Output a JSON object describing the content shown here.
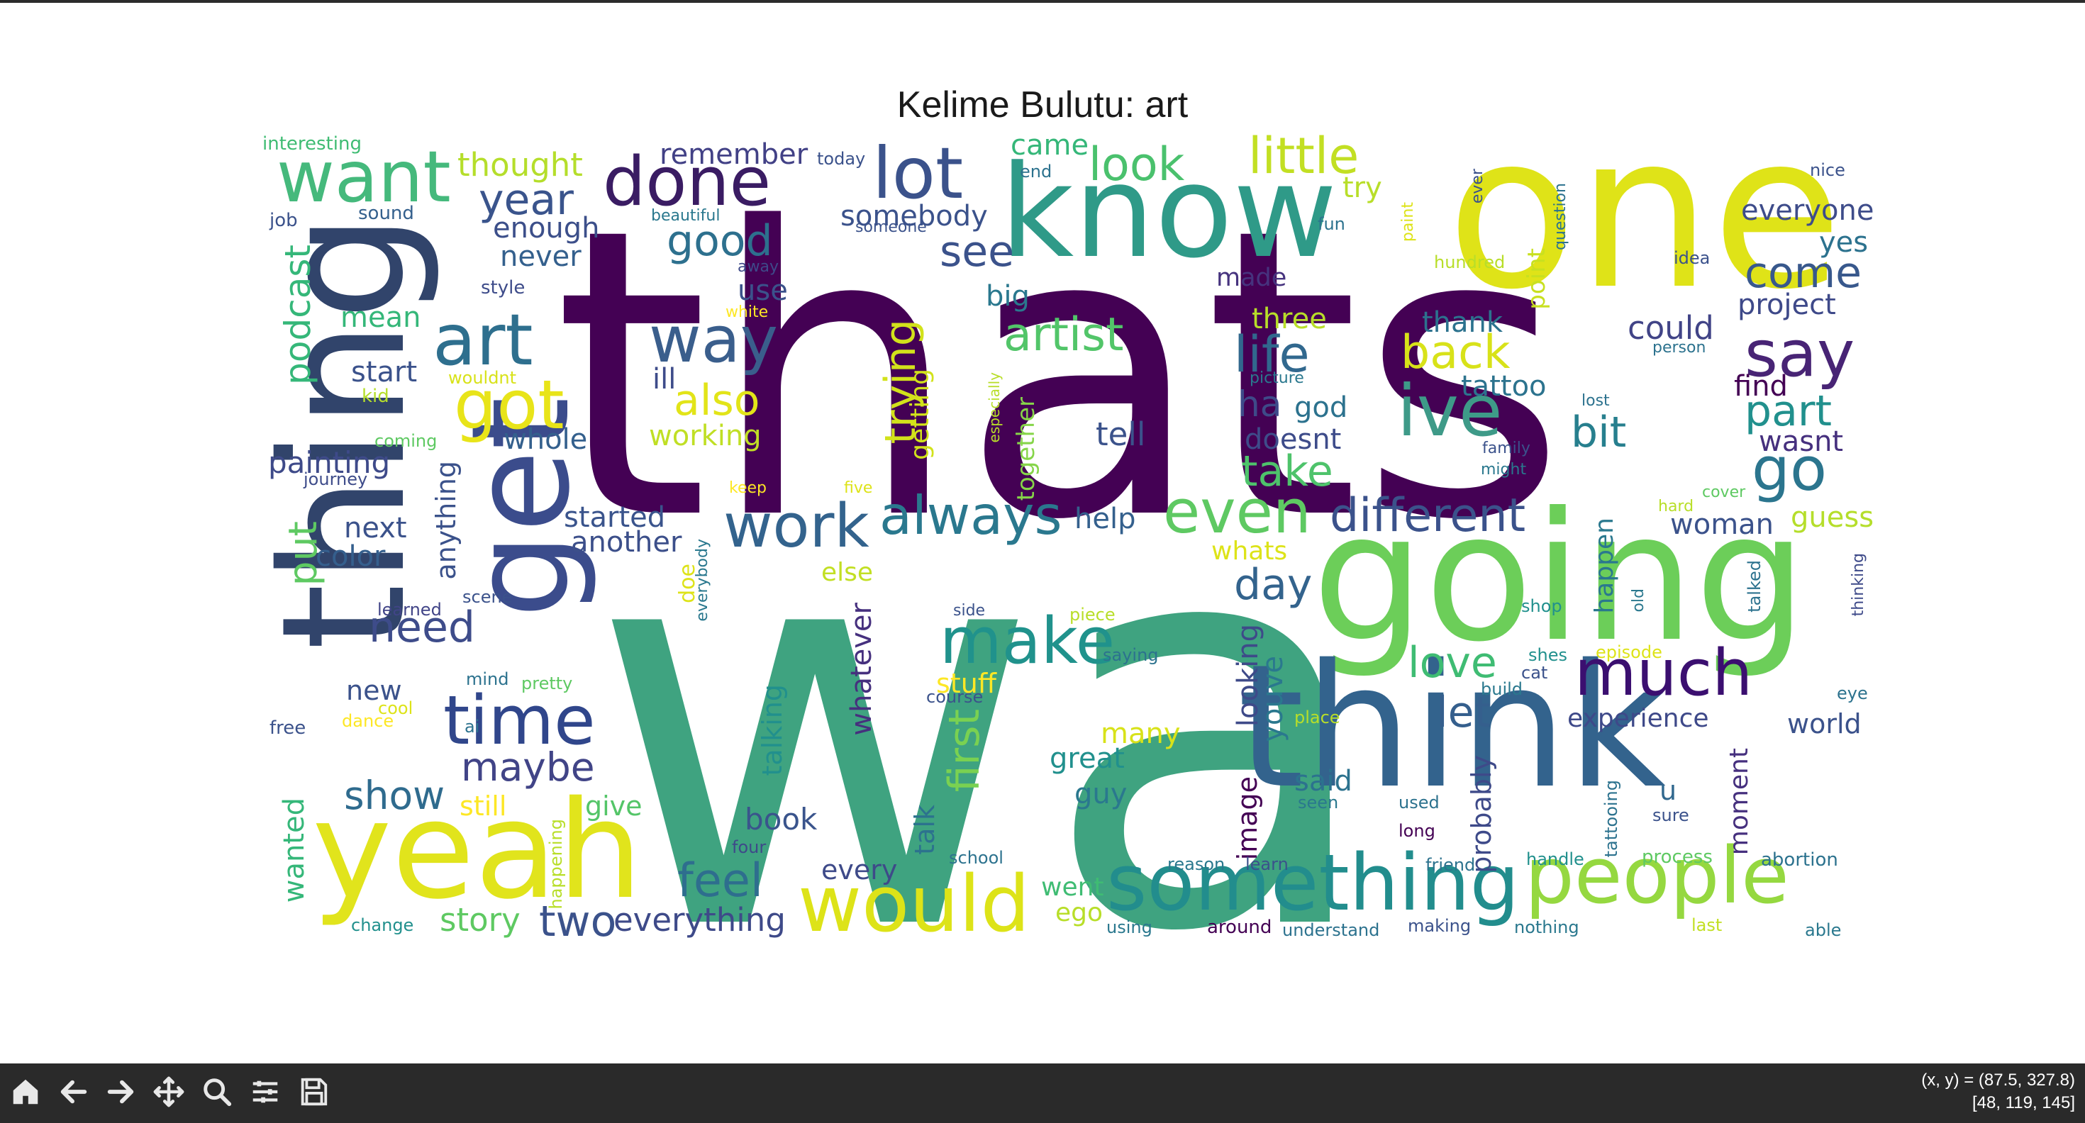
{
  "title": "Kelime Bulutu: art",
  "words": [
    {
      "text": "thats",
      "color": "#440154"
    },
    {
      "text": "wa",
      "color": "#3fa380"
    },
    {
      "text": "one",
      "color": "#dfe318"
    },
    {
      "text": "know",
      "color": "#2f9a88"
    },
    {
      "text": "going",
      "color": "#6cce59"
    },
    {
      "text": "think",
      "color": "#33638d"
    },
    {
      "text": "thing",
      "color": "#31446b"
    },
    {
      "text": "yeah",
      "color": "#e1e41c"
    },
    {
      "text": "get",
      "color": "#3b4c8c"
    },
    {
      "text": "something",
      "color": "#228d8d"
    },
    {
      "text": "people",
      "color": "#95d840"
    },
    {
      "text": "would",
      "color": "#dde318"
    },
    {
      "text": "want",
      "color": "#45b97c"
    },
    {
      "text": "done",
      "color": "#3a1c63"
    },
    {
      "text": "lot",
      "color": "#3b528b"
    },
    {
      "text": "art",
      "color": "#2e6f8e"
    },
    {
      "text": "got",
      "color": "#e8e419"
    },
    {
      "text": "time",
      "color": "#30468b"
    },
    {
      "text": "way",
      "color": "#3a5e8c"
    },
    {
      "text": "say",
      "color": "#482475"
    },
    {
      "text": "ive",
      "color": "#3e9a88"
    },
    {
      "text": "go",
      "color": "#2b758e"
    },
    {
      "text": "much",
      "color": "#3b0f70"
    },
    {
      "text": "work",
      "color": "#33638d"
    },
    {
      "text": "even",
      "color": "#5ec962"
    },
    {
      "text": "make",
      "color": "#20928c"
    },
    {
      "text": "always",
      "color": "#2a788e"
    },
    {
      "text": "different",
      "color": "#3b528b"
    },
    {
      "text": "look",
      "color": "#4ac16d"
    },
    {
      "text": "little",
      "color": "#c2df23"
    },
    {
      "text": "back",
      "color": "#d8e219"
    },
    {
      "text": "life",
      "color": "#31688e"
    },
    {
      "text": "artist",
      "color": "#52c569"
    },
    {
      "text": "good",
      "color": "#2d708e"
    },
    {
      "text": "year",
      "color": "#3a548c"
    },
    {
      "text": "come",
      "color": "#38588c"
    },
    {
      "text": "part",
      "color": "#21908d"
    },
    {
      "text": "bit",
      "color": "#277f8e"
    },
    {
      "text": "take",
      "color": "#4ec36b"
    },
    {
      "text": "feel",
      "color": "#2e6e8e"
    },
    {
      "text": "love",
      "color": "#3fbc73"
    },
    {
      "text": "let",
      "color": "#355f8d"
    },
    {
      "text": "need",
      "color": "#3e4c8a"
    },
    {
      "text": "show",
      "color": "#2f6b8e"
    },
    {
      "text": "two",
      "color": "#3b528b"
    },
    {
      "text": "maybe",
      "color": "#414487"
    },
    {
      "text": "also",
      "color": "#e2e418"
    },
    {
      "text": "see",
      "color": "#3b528b"
    },
    {
      "text": "trying",
      "color": "#d2e21b"
    },
    {
      "text": "first",
      "color": "#7ad151"
    },
    {
      "text": "day",
      "color": "#33638d"
    },
    {
      "text": "put",
      "color": "#5ec962"
    },
    {
      "text": "podcast",
      "color": "#35b779"
    },
    {
      "text": "story",
      "color": "#5ec962"
    },
    {
      "text": "everything",
      "color": "#3e4a89"
    },
    {
      "text": "thought",
      "color": "#b5de2b"
    },
    {
      "text": "remember",
      "color": "#424186"
    },
    {
      "text": "enough",
      "color": "#3c4f8a"
    },
    {
      "text": "never",
      "color": "#34608d"
    },
    {
      "text": "use",
      "color": "#3b528b"
    },
    {
      "text": "big",
      "color": "#2a788e"
    },
    {
      "text": "made",
      "color": "#46337e"
    },
    {
      "text": "three",
      "color": "#b8de29"
    },
    {
      "text": "thank",
      "color": "#2c728e"
    },
    {
      "text": "could",
      "color": "#414487"
    },
    {
      "text": "project",
      "color": "#3e4989"
    },
    {
      "text": "find",
      "color": "#440154"
    },
    {
      "text": "wasnt",
      "color": "#46307e"
    },
    {
      "text": "tattoo",
      "color": "#2c738e"
    },
    {
      "text": "tell",
      "color": "#3b528b"
    },
    {
      "text": "doesnt",
      "color": "#3e4c8a"
    },
    {
      "text": "ha",
      "color": "#3e4a89"
    },
    {
      "text": "god",
      "color": "#2c728e"
    },
    {
      "text": "start",
      "color": "#3b528b"
    },
    {
      "text": "mean",
      "color": "#35b779"
    },
    {
      "text": "whole",
      "color": "#34608d"
    },
    {
      "text": "painting",
      "color": "#3e4a89"
    },
    {
      "text": "next",
      "color": "#3b528b"
    },
    {
      "text": "color",
      "color": "#355f8d"
    },
    {
      "text": "started",
      "color": "#3a548c"
    },
    {
      "text": "another",
      "color": "#3c4f8a"
    },
    {
      "text": "help",
      "color": "#34608d"
    },
    {
      "text": "working",
      "color": "#c0df25"
    },
    {
      "text": "ill",
      "color": "#3e4c8a"
    },
    {
      "text": "somebody",
      "color": "#3b528b"
    },
    {
      "text": "came",
      "color": "#35b779"
    },
    {
      "text": "everyone",
      "color": "#3e4c8a"
    },
    {
      "text": "yes",
      "color": "#2c728e"
    },
    {
      "text": "woman",
      "color": "#3b528b"
    },
    {
      "text": "guess",
      "color": "#b5de2b"
    },
    {
      "text": "new",
      "color": "#3b528b"
    },
    {
      "text": "still",
      "color": "#fde725"
    },
    {
      "text": "give",
      "color": "#54c568"
    },
    {
      "text": "book",
      "color": "#3a548c"
    },
    {
      "text": "every",
      "color": "#3e4a89"
    },
    {
      "text": "went",
      "color": "#3fbc73"
    },
    {
      "text": "ego",
      "color": "#b8de29"
    },
    {
      "text": "many",
      "color": "#d8e219"
    },
    {
      "text": "great",
      "color": "#21908d"
    },
    {
      "text": "guy",
      "color": "#2a788e"
    },
    {
      "text": "said",
      "color": "#2c728e"
    },
    {
      "text": "experience",
      "color": "#3e4989"
    },
    {
      "text": "world",
      "color": "#3b528b"
    },
    {
      "text": "u",
      "color": "#31688e"
    },
    {
      "text": "whatever",
      "color": "#46307e"
    },
    {
      "text": "looking",
      "color": "#3e4a89"
    },
    {
      "text": "youve",
      "color": "#2a788e"
    },
    {
      "text": "image",
      "color": "#440154"
    },
    {
      "text": "probably",
      "color": "#3e4a89"
    },
    {
      "text": "talking",
      "color": "#21908d"
    },
    {
      "text": "talk",
      "color": "#2c728e"
    },
    {
      "text": "stuff",
      "color": "#fde725"
    },
    {
      "text": "whats",
      "color": "#dde318"
    },
    {
      "text": "else",
      "color": "#c2df23"
    },
    {
      "text": "anything",
      "color": "#3b528b"
    },
    {
      "text": "getting",
      "color": "#d2e21b"
    },
    {
      "text": "together",
      "color": "#86d549"
    },
    {
      "text": "happen",
      "color": "#2a788e"
    },
    {
      "text": "moment",
      "color": "#46307e"
    },
    {
      "text": "wanted",
      "color": "#35b779"
    },
    {
      "text": "point",
      "color": "#c8e020"
    },
    {
      "text": "interesting",
      "color": "#3fbc73"
    },
    {
      "text": "job",
      "color": "#3b528b"
    },
    {
      "text": "sound",
      "color": "#34608d"
    },
    {
      "text": "style",
      "color": "#3e4c8a"
    },
    {
      "text": "kid",
      "color": "#b5de2b"
    },
    {
      "text": "wouldnt",
      "color": "#d8e219"
    },
    {
      "text": "coming",
      "color": "#5ec962"
    },
    {
      "text": "journey",
      "color": "#3e4c8a"
    },
    {
      "text": "scene",
      "color": "#3b528b"
    },
    {
      "text": "learned",
      "color": "#414487"
    },
    {
      "text": "mind",
      "color": "#2c728e"
    },
    {
      "text": "pretty",
      "color": "#5ec962"
    },
    {
      "text": "cool",
      "color": "#dde318"
    },
    {
      "text": "dance",
      "color": "#fde725"
    },
    {
      "text": "free",
      "color": "#3b528b"
    },
    {
      "text": "ai",
      "color": "#2c728e"
    },
    {
      "text": "change",
      "color": "#21908d"
    },
    {
      "text": "happening",
      "color": "#b8de29"
    },
    {
      "text": "four",
      "color": "#3e4a89"
    },
    {
      "text": "school",
      "color": "#2c728e"
    },
    {
      "text": "using",
      "color": "#2a788e"
    },
    {
      "text": "around",
      "color": "#440154"
    },
    {
      "text": "understand",
      "color": "#2c728e"
    },
    {
      "text": "making",
      "color": "#3b528b"
    },
    {
      "text": "nothing",
      "color": "#2a788e"
    },
    {
      "text": "last",
      "color": "#c2df23"
    },
    {
      "text": "able",
      "color": "#2a788e"
    },
    {
      "text": "abortion",
      "color": "#2c728e"
    },
    {
      "text": "process",
      "color": "#5ec962"
    },
    {
      "text": "handle",
      "color": "#21908d"
    },
    {
      "text": "friend",
      "color": "#2c728e"
    },
    {
      "text": "reason",
      "color": "#2a788e"
    },
    {
      "text": "learn",
      "color": "#3b528b"
    },
    {
      "text": "long",
      "color": "#440154"
    },
    {
      "text": "used",
      "color": "#2c728e"
    },
    {
      "text": "seen",
      "color": "#2a788e"
    },
    {
      "text": "sure",
      "color": "#3b528b"
    },
    {
      "text": "tattooing",
      "color": "#2c728e"
    },
    {
      "text": "place",
      "color": "#b8de29"
    },
    {
      "text": "build",
      "color": "#2a788e"
    },
    {
      "text": "shes",
      "color": "#21908d"
    },
    {
      "text": "cat",
      "color": "#3b528b"
    },
    {
      "text": "episode",
      "color": "#dde318"
    },
    {
      "text": "eye",
      "color": "#2c728e"
    },
    {
      "text": "shop",
      "color": "#21908d"
    },
    {
      "text": "old",
      "color": "#2a788e"
    },
    {
      "text": "talked",
      "color": "#2c728e"
    },
    {
      "text": "thinking",
      "color": "#3e4a89"
    },
    {
      "text": "course",
      "color": "#3b528b"
    },
    {
      "text": "saying",
      "color": "#2c728e"
    },
    {
      "text": "piece",
      "color": "#b8de29"
    },
    {
      "text": "side",
      "color": "#3b528b"
    },
    {
      "text": "everybody",
      "color": "#2a788e"
    },
    {
      "text": "doe",
      "color": "#dde318"
    },
    {
      "text": "keep",
      "color": "#fde725"
    },
    {
      "text": "five",
      "color": "#dde318"
    },
    {
      "text": "especially",
      "color": "#b8de29"
    },
    {
      "text": "cover",
      "color": "#5ec962"
    },
    {
      "text": "hard",
      "color": "#b8de29"
    },
    {
      "text": "might",
      "color": "#2a788e"
    },
    {
      "text": "family",
      "color": "#3b528b"
    },
    {
      "text": "lost",
      "color": "#2c728e"
    },
    {
      "text": "picture",
      "color": "#2a788e"
    },
    {
      "text": "person",
      "color": "#2c728e"
    },
    {
      "text": "idea",
      "color": "#3b528b"
    },
    {
      "text": "hundred",
      "color": "#b8de29"
    },
    {
      "text": "question",
      "color": "#2c728e"
    },
    {
      "text": "paint",
      "color": "#dde318"
    },
    {
      "text": "ever",
      "color": "#3b528b"
    },
    {
      "text": "fun",
      "color": "#2c728e"
    },
    {
      "text": "try",
      "color": "#b8de29"
    },
    {
      "text": "nice",
      "color": "#3b528b"
    },
    {
      "text": "today",
      "color": "#3b528b"
    },
    {
      "text": "end",
      "color": "#2c728e"
    },
    {
      "text": "beautiful",
      "color": "#2a788e"
    },
    {
      "text": "someone",
      "color": "#3b528b"
    },
    {
      "text": "away",
      "color": "#3e4a89"
    },
    {
      "text": "white",
      "color": "#fde725"
    }
  ],
  "toolbar": {
    "icons": [
      "home-icon",
      "back-arrow-icon",
      "forward-arrow-icon",
      "pan-icon",
      "zoom-icon",
      "configure-subplots-icon",
      "save-icon"
    ],
    "coord_readout": "(x, y) = (87.5, 327.8)",
    "pixel_readout": "[48, 119, 145]"
  }
}
